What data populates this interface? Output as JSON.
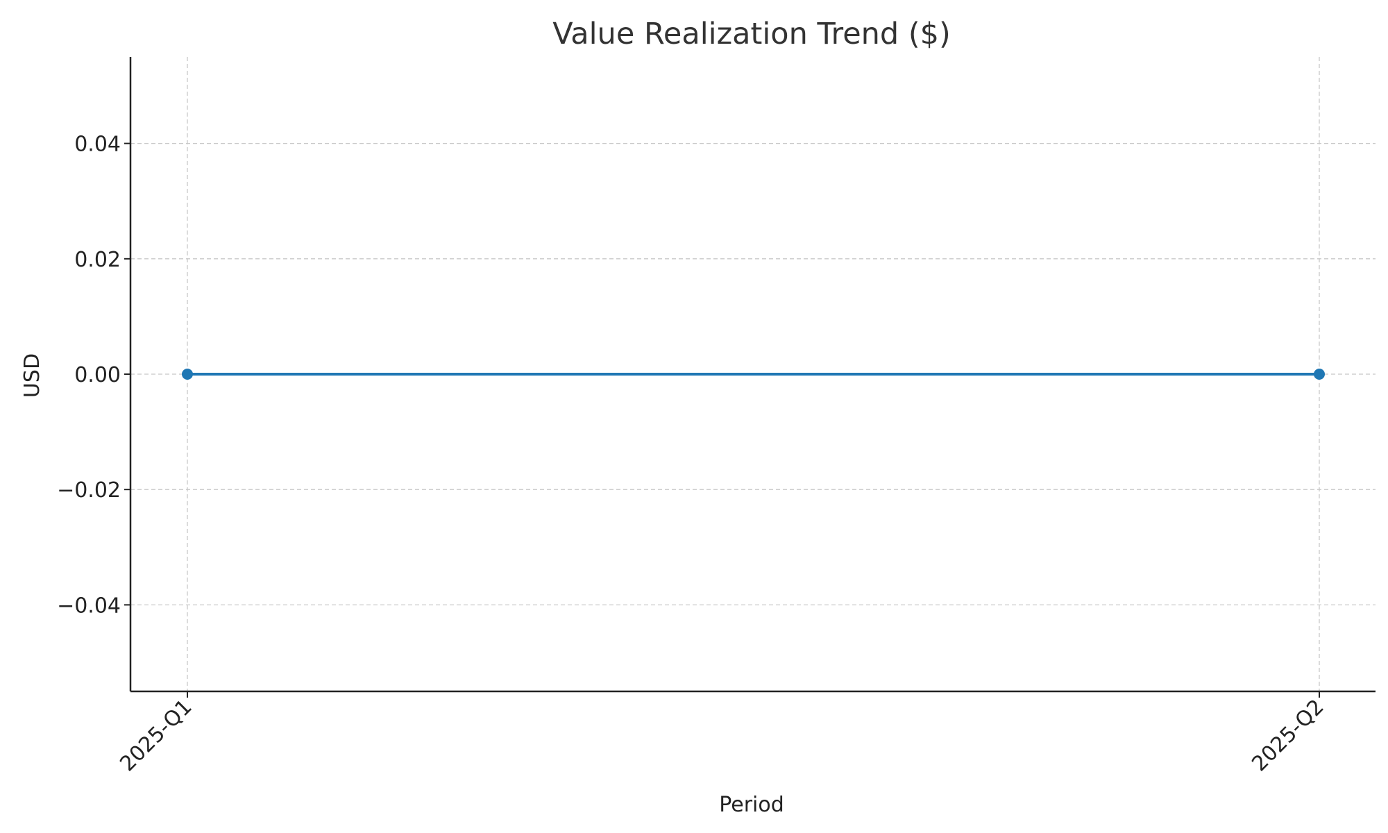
{
  "chart_data": {
    "type": "line",
    "title": "Value Realization Trend ($)",
    "xlabel": "Period",
    "ylabel": "USD",
    "categories": [
      "2025-Q1",
      "2025-Q2"
    ],
    "series": [
      {
        "values": [
          0,
          0
        ]
      }
    ],
    "ylim": [
      -0.055,
      0.055
    ],
    "yticks": [
      0.04,
      0.02,
      0.0,
      -0.02,
      -0.04
    ],
    "ytick_labels": [
      "0.04",
      "0.02",
      "0.00",
      "−0.02",
      "−0.04"
    ],
    "grid": true,
    "line_color": "#1f77b4",
    "marker": "circle"
  }
}
